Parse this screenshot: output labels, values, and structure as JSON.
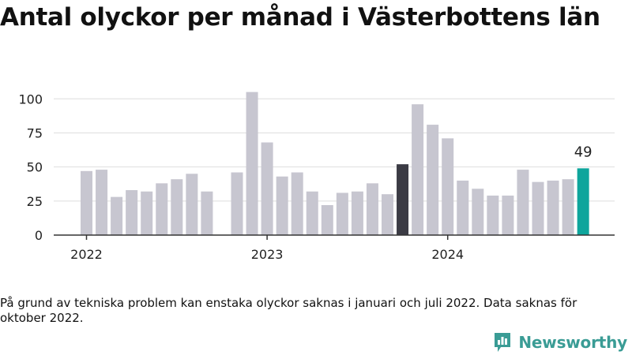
{
  "title": "Antal olyckor per månad i Västerbottens län",
  "note": "På grund av tekniska problem kan enstaka olyckor saknas i januari och juli 2022. Data saknas för oktober 2022.",
  "brand": {
    "name": "Newsworthy",
    "icon": "bar-chart-badge-icon",
    "color": "#3a9c95"
  },
  "chart_data": {
    "type": "bar",
    "x": [
      "2022-01",
      "2022-02",
      "2022-03",
      "2022-04",
      "2022-05",
      "2022-06",
      "2022-07",
      "2022-08",
      "2022-09",
      "2022-10",
      "2022-11",
      "2022-12",
      "2023-01",
      "2023-02",
      "2023-03",
      "2023-04",
      "2023-05",
      "2023-06",
      "2023-07",
      "2023-08",
      "2023-09",
      "2023-10",
      "2023-11",
      "2023-12",
      "2024-01",
      "2024-02",
      "2024-03",
      "2024-04",
      "2024-05",
      "2024-06",
      "2024-07",
      "2024-08",
      "2024-09",
      "2024-10"
    ],
    "values": [
      47,
      48,
      28,
      33,
      32,
      38,
      41,
      45,
      32,
      null,
      46,
      105,
      68,
      43,
      46,
      32,
      22,
      31,
      32,
      38,
      30,
      52,
      96,
      81,
      71,
      40,
      34,
      29,
      29,
      48,
      39,
      40,
      41,
      49
    ],
    "ylim": [
      0,
      110
    ],
    "yticks": [
      0,
      25,
      50,
      75,
      100
    ],
    "xticks": [
      {
        "label": "2022",
        "at": "2022-01"
      },
      {
        "label": "2023",
        "at": "2023-01"
      },
      {
        "label": "2024",
        "at": "2024-01"
      }
    ],
    "highlight": [
      {
        "at": "2023-10",
        "color": "#3b3b44"
      },
      {
        "at": "2024-10",
        "color": "#0ea59c",
        "label": "49"
      }
    ],
    "bar_color": "#c7c6d0",
    "grid": true
  }
}
